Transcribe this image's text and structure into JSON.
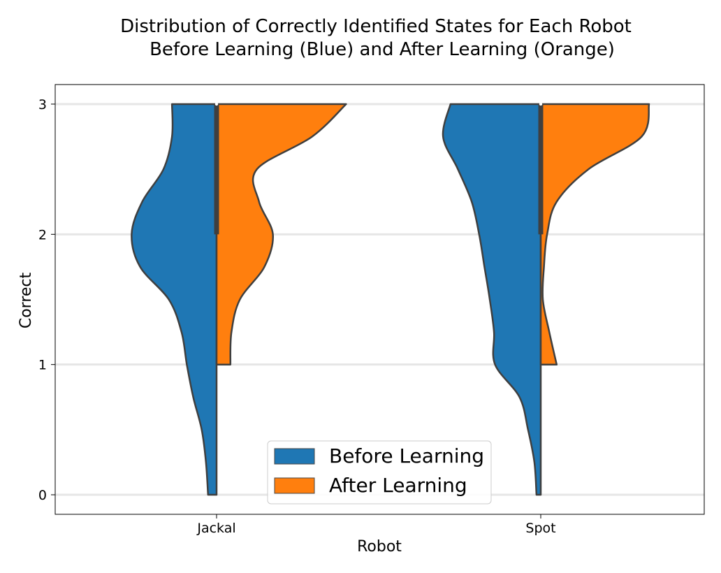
{
  "chart_data": {
    "type": "violin",
    "title_lines": [
      "Distribution of Correctly Identified States for Each Robot",
      "Before Learning (Blue) and After Learning (Orange)"
    ],
    "xlabel": "Robot",
    "ylabel": "Correct",
    "categories": [
      "Jackal",
      "Spot"
    ],
    "y_ticks": [
      0,
      1,
      2,
      3
    ],
    "ylim": [
      -0.15,
      3.15
    ],
    "grid": "horizontal",
    "legend_position": "lower-center",
    "series": [
      {
        "name": "Before Learning",
        "color": "#1f77b4",
        "side": "left",
        "profiles": [
          {
            "category": "Jackal",
            "y": [
              0,
              0.25,
              0.5,
              0.75,
              1.0,
              1.25,
              1.5,
              1.75,
              2.0,
              2.25,
              2.5,
              2.75,
              3.0
            ],
            "density": [
              0.08,
              0.1,
              0.14,
              0.22,
              0.28,
              0.33,
              0.45,
              0.72,
              0.8,
              0.7,
              0.5,
              0.42,
              0.42
            ]
          },
          {
            "category": "Spot",
            "y": [
              0,
              0.25,
              0.5,
              0.75,
              1.0,
              1.25,
              1.5,
              1.75,
              2.0,
              2.25,
              2.5,
              2.75,
              3.0
            ],
            "density": [
              0.04,
              0.06,
              0.12,
              0.2,
              0.43,
              0.44,
              0.48,
              0.53,
              0.58,
              0.65,
              0.78,
              0.92,
              0.85
            ]
          }
        ],
        "quartile_box": [
          {
            "category": "Jackal",
            "q1": 2,
            "median": 3,
            "q3": 3
          },
          {
            "category": "Spot",
            "q1": 2,
            "median": 3,
            "q3": 3
          }
        ]
      },
      {
        "name": "After Learning",
        "color": "#ff7f0e",
        "side": "right",
        "profiles": [
          {
            "category": "Jackal",
            "y": [
              1.0,
              1.25,
              1.5,
              1.75,
              2.0,
              2.25,
              2.5,
              2.75,
              3.0
            ],
            "density": [
              0.13,
              0.14,
              0.22,
              0.45,
              0.53,
              0.4,
              0.38,
              0.9,
              1.22
            ]
          },
          {
            "category": "Spot",
            "y": [
              1.0,
              1.25,
              1.5,
              1.75,
              2.0,
              2.25,
              2.5,
              2.75,
              3.0
            ],
            "density": [
              0.15,
              0.08,
              0.02,
              0.03,
              0.06,
              0.15,
              0.45,
              0.95,
              1.02
            ]
          }
        ]
      }
    ]
  }
}
